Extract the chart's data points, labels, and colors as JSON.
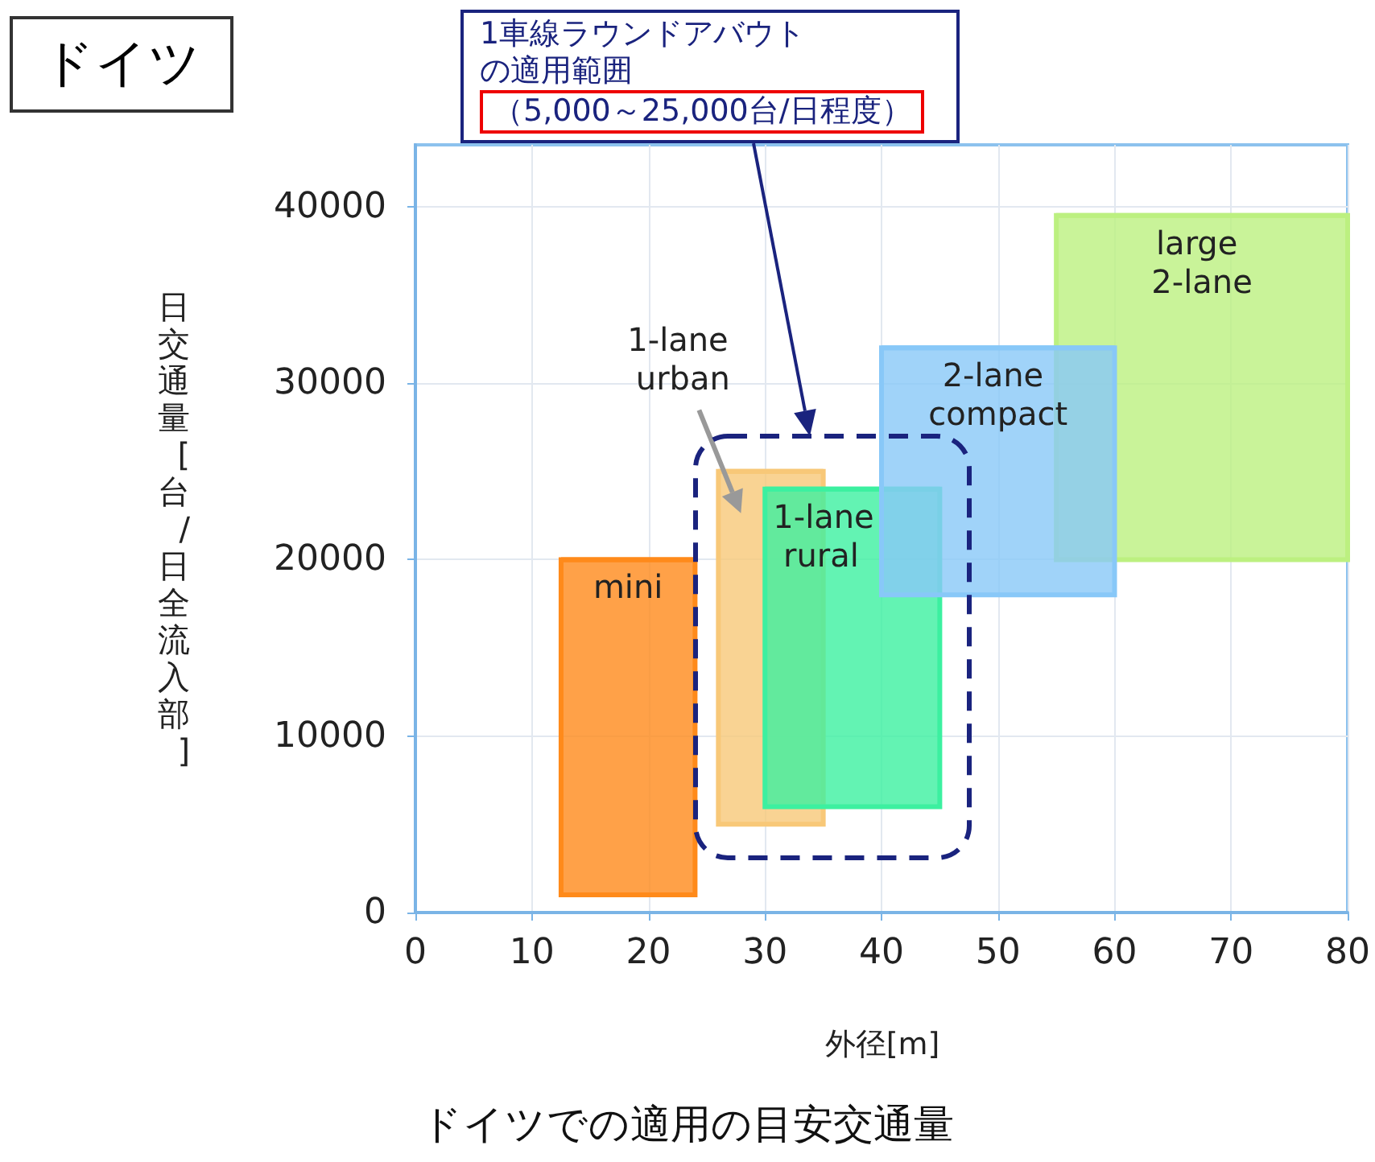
{
  "chart_data": {
    "type": "line",
    "title": "ドイツ",
    "xlabel": "外径[m]",
    "ylabel": "日交通量[台/日全流入部]",
    "xlim": [
      0,
      80
    ],
    "xticks": [
      0,
      10,
      20,
      30,
      40,
      50,
      60,
      70,
      80
    ],
    "ylim": [
      0,
      43500
    ],
    "yticks": [
      0,
      10000,
      20000,
      30000,
      40000
    ],
    "grid": true,
    "marker": "none",
    "series": [
      {
        "name": "mini",
        "color": "#ff8a1a",
        "x": [
          12.5,
          24
        ],
        "values": [
          20000,
          20000
        ],
        "lower": [
          1000,
          1000
        ],
        "upper": [
          20000,
          20000
        ]
      },
      {
        "name": "1-lane urban",
        "color": "#f8c878",
        "x": [
          26,
          35
        ],
        "values": [
          25000,
          25000
        ],
        "lower": [
          5000,
          5000
        ],
        "upper": [
          25000,
          25000
        ]
      },
      {
        "name": "1-lane rural",
        "color": "#3cf0a0",
        "x": [
          30,
          45
        ],
        "values": [
          24000,
          24000
        ],
        "lower": [
          6000,
          6000
        ],
        "upper": [
          24000,
          24000
        ]
      },
      {
        "name": "large 2-lane",
        "color": "#bcf080",
        "x": [
          55,
          80
        ],
        "values": [
          39500,
          39500
        ],
        "lower": [
          20000,
          20000
        ],
        "upper": [
          39500,
          39500
        ]
      },
      {
        "name": "2-lane compact",
        "color": "#88c8f8",
        "x": [
          40,
          60
        ],
        "values": [
          32000,
          32000
        ],
        "lower": [
          18000,
          18000
        ],
        "upper": [
          32000,
          32000
        ]
      }
    ],
    "annotations": [
      "1車線ラウンドアバウトの適用範囲",
      "（5,000～25,000台/日程度）",
      "ドイツでの適用の目安交通量"
    ]
  }
}
